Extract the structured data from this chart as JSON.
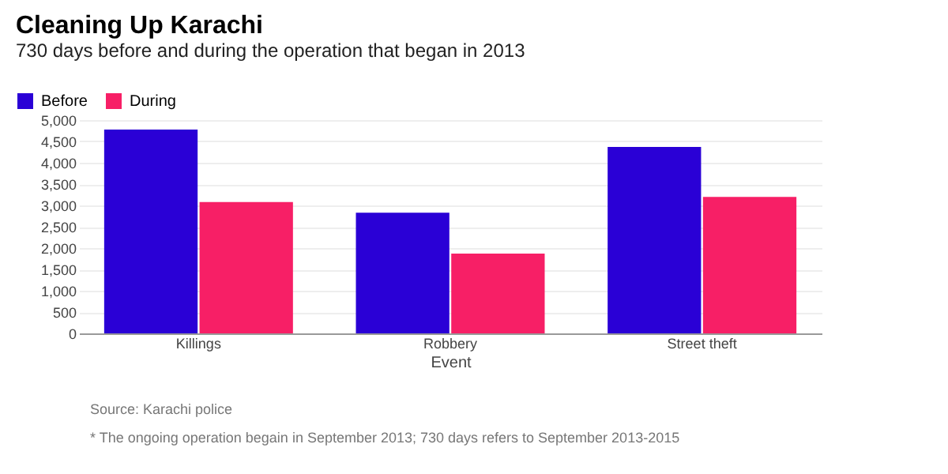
{
  "chart_data": {
    "type": "bar",
    "title": "Cleaning Up Karachi",
    "subtitle": "730 days before and during the operation that began in 2013",
    "xlabel": "Event",
    "categories": [
      "Killings",
      "Robbery",
      "Street theft"
    ],
    "series": [
      {
        "name": "Before",
        "color": "#2a00d6",
        "values": [
          4780,
          2830,
          4370
        ]
      },
      {
        "name": "During",
        "color": "#f71f66",
        "values": [
          3080,
          1870,
          3200
        ]
      }
    ],
    "ylim": [
      0,
      5000
    ],
    "yticks": [
      0,
      500,
      {
        "value": 1000,
        "label": "1,000"
      },
      {
        "value": 1500,
        "label": "1,500"
      },
      {
        "value": 2000,
        "label": "2,000"
      },
      {
        "value": 2500,
        "label": "2,500"
      },
      {
        "value": 3000,
        "label": "3,000"
      },
      {
        "value": 3500,
        "label": "3,500"
      },
      {
        "value": 4000,
        "label": "4,000"
      },
      {
        "value": 4500,
        "label": "4,500"
      },
      {
        "value": 5000,
        "label": "5,000"
      }
    ],
    "grid": "y",
    "legend": "top left",
    "annotations": [
      "Source: Karachi police",
      "* The ongoing operation begain in September 2013; 730 days refers to September 2013-2015"
    ]
  }
}
